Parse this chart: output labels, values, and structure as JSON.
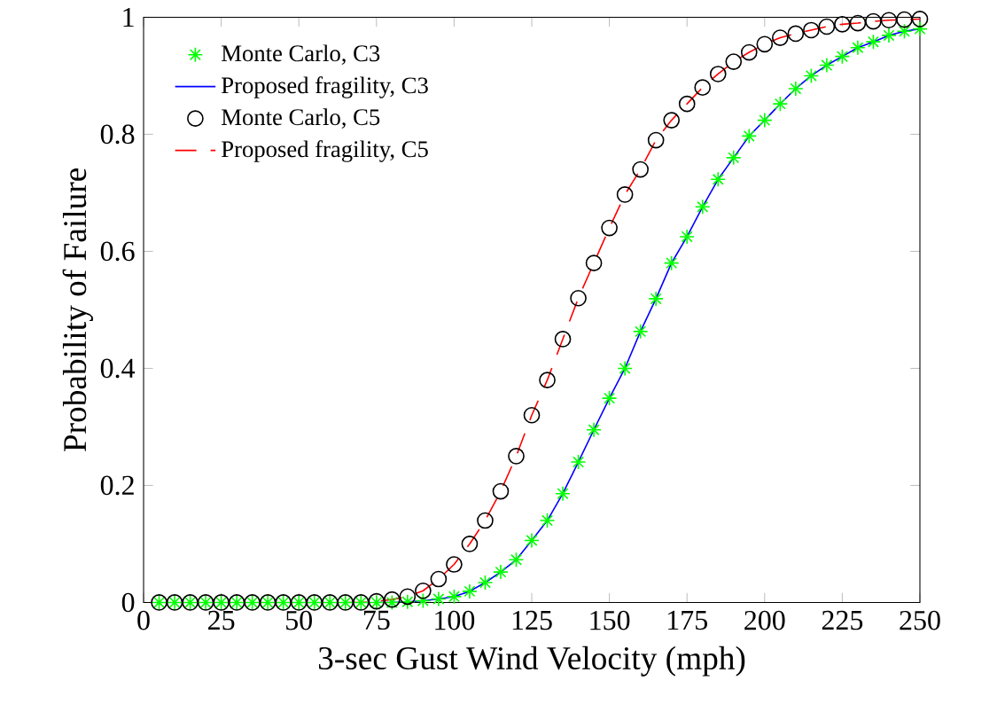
{
  "chart_data": {
    "type": "line",
    "xlabel": "3-sec Gust Wind Velocity (mph)",
    "ylabel": "Probability of Failure",
    "x": [
      5,
      10,
      15,
      20,
      25,
      30,
      35,
      40,
      45,
      50,
      55,
      60,
      65,
      70,
      75,
      80,
      85,
      90,
      95,
      100,
      105,
      110,
      115,
      120,
      125,
      130,
      135,
      140,
      145,
      150,
      155,
      160,
      165,
      170,
      175,
      180,
      185,
      190,
      195,
      200,
      205,
      210,
      215,
      220,
      225,
      230,
      235,
      240,
      245,
      250
    ],
    "series": [
      {
        "name": "Monte Carlo, C3",
        "type": "scatter",
        "marker": "cross",
        "color": "#00ff00",
        "values": [
          0,
          0,
          0,
          0,
          0,
          0,
          0,
          0,
          0,
          0,
          0,
          0,
          0,
          0,
          0,
          0,
          0.001,
          0.003,
          0.006,
          0.01,
          0.019,
          0.034,
          0.052,
          0.073,
          0.106,
          0.14,
          0.186,
          0.24,
          0.295,
          0.349,
          0.4,
          0.463,
          0.519,
          0.58,
          0.625,
          0.676,
          0.723,
          0.76,
          0.797,
          0.824,
          0.852,
          0.878,
          0.9,
          0.918,
          0.933,
          0.948,
          0.958,
          0.969,
          0.976,
          0.98
        ]
      },
      {
        "name": "Proposed fragility, C3",
        "line_style": "solid",
        "color": "#0000ff",
        "x": [
          75,
          80,
          85,
          90,
          95,
          100,
          105,
          110,
          115,
          120,
          125,
          130,
          135,
          140,
          145,
          150,
          155,
          160,
          165,
          170,
          175,
          180,
          185,
          190,
          195,
          200,
          205,
          210,
          215,
          220,
          225,
          230,
          235,
          240,
          245,
          250
        ],
        "values": [
          0,
          0,
          0.001,
          0.003,
          0.006,
          0.01,
          0.019,
          0.034,
          0.052,
          0.073,
          0.106,
          0.14,
          0.186,
          0.24,
          0.295,
          0.349,
          0.4,
          0.463,
          0.519,
          0.58,
          0.625,
          0.676,
          0.723,
          0.76,
          0.797,
          0.824,
          0.852,
          0.878,
          0.9,
          0.918,
          0.933,
          0.948,
          0.958,
          0.969,
          0.976,
          0.98
        ]
      },
      {
        "name": "Monte Carlo, C5",
        "type": "scatter",
        "marker": "circle",
        "color": "#000000",
        "values": [
          0,
          0,
          0,
          0,
          0,
          0,
          0,
          0,
          0,
          0,
          0,
          0,
          0,
          0,
          0.002,
          0.005,
          0.01,
          0.02,
          0.04,
          0.065,
          0.1,
          0.14,
          0.19,
          0.25,
          0.32,
          0.38,
          0.45,
          0.52,
          0.58,
          0.64,
          0.697,
          0.74,
          0.79,
          0.824,
          0.852,
          0.88,
          0.903,
          0.924,
          0.94,
          0.954,
          0.965,
          0.972,
          0.978,
          0.984,
          0.988,
          0.99,
          0.993,
          0.995,
          0.996,
          0.997
        ]
      },
      {
        "name": "Proposed fragility, C5",
        "line_style": "dashed",
        "color": "#ff0000",
        "x": [
          65,
          70,
          75,
          80,
          85,
          90,
          95,
          100,
          105,
          110,
          115,
          120,
          125,
          130,
          135,
          140,
          145,
          150,
          155,
          160,
          165,
          170,
          175,
          180,
          185,
          190,
          195,
          200,
          205,
          210,
          215,
          220,
          225,
          230,
          235,
          240,
          245,
          250
        ],
        "values": [
          0,
          0,
          0.002,
          0.005,
          0.01,
          0.02,
          0.04,
          0.065,
          0.1,
          0.14,
          0.19,
          0.25,
          0.32,
          0.38,
          0.45,
          0.52,
          0.58,
          0.64,
          0.697,
          0.74,
          0.79,
          0.824,
          0.852,
          0.88,
          0.903,
          0.924,
          0.94,
          0.954,
          0.965,
          0.972,
          0.978,
          0.984,
          0.988,
          0.99,
          0.993,
          0.995,
          0.996,
          0.997
        ]
      }
    ],
    "xlim": [
      0,
      250
    ],
    "xticks": [
      0,
      25,
      50,
      75,
      100,
      125,
      150,
      175,
      200,
      225,
      250
    ],
    "ylim": [
      0,
      1
    ],
    "yticks": [
      0,
      {
        "value": 0.2,
        "label": "0.2"
      },
      {
        "value": 0.4,
        "label": "0.4"
      },
      {
        "value": 0.6,
        "label": "0.6"
      },
      {
        "value": 0.8,
        "label": "0.8"
      },
      1
    ],
    "legend": "top left",
    "grid": false
  }
}
